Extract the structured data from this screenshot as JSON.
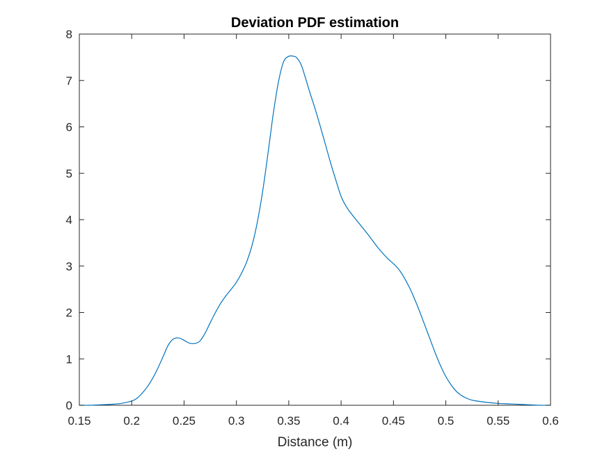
{
  "chart_data": {
    "type": "line",
    "title": "Deviation PDF estimation",
    "xlabel": "Distance (m)",
    "ylabel": "",
    "xlim": [
      0.15,
      0.6
    ],
    "ylim": [
      0,
      8
    ],
    "xticks": [
      "0.15",
      "0.2",
      "0.25",
      "0.3",
      "0.35",
      "0.4",
      "0.45",
      "0.5",
      "0.55",
      "0.6"
    ],
    "yticks": [
      "0",
      "1",
      "2",
      "3",
      "4",
      "5",
      "6",
      "7",
      "8"
    ],
    "grid": false,
    "legend": "none",
    "series": [
      {
        "color": "#0072BD",
        "x": [
          0.15,
          0.16,
          0.17,
          0.18,
          0.19,
          0.2,
          0.205,
          0.21,
          0.215,
          0.22,
          0.225,
          0.23,
          0.235,
          0.24,
          0.245,
          0.25,
          0.255,
          0.26,
          0.265,
          0.27,
          0.275,
          0.28,
          0.285,
          0.29,
          0.295,
          0.3,
          0.305,
          0.31,
          0.315,
          0.32,
          0.325,
          0.33,
          0.335,
          0.34,
          0.345,
          0.35,
          0.355,
          0.358,
          0.362,
          0.366,
          0.37,
          0.375,
          0.38,
          0.385,
          0.39,
          0.395,
          0.4,
          0.405,
          0.41,
          0.415,
          0.42,
          0.425,
          0.43,
          0.435,
          0.44,
          0.445,
          0.45,
          0.455,
          0.46,
          0.465,
          0.47,
          0.475,
          0.48,
          0.485,
          0.49,
          0.495,
          0.5,
          0.505,
          0.51,
          0.515,
          0.52,
          0.525,
          0.53,
          0.54,
          0.55,
          0.56,
          0.57,
          0.58,
          0.59,
          0.6
        ],
        "y": [
          0.0,
          0.0,
          0.01,
          0.02,
          0.04,
          0.09,
          0.15,
          0.26,
          0.4,
          0.58,
          0.8,
          1.05,
          1.3,
          1.43,
          1.45,
          1.4,
          1.34,
          1.33,
          1.38,
          1.55,
          1.78,
          2.0,
          2.2,
          2.36,
          2.5,
          2.65,
          2.85,
          3.1,
          3.45,
          3.95,
          4.6,
          5.4,
          6.25,
          6.95,
          7.4,
          7.52,
          7.52,
          7.48,
          7.33,
          7.05,
          6.75,
          6.4,
          6.02,
          5.62,
          5.22,
          4.85,
          4.5,
          4.28,
          4.12,
          3.98,
          3.84,
          3.7,
          3.55,
          3.4,
          3.27,
          3.15,
          3.05,
          2.93,
          2.76,
          2.55,
          2.3,
          2.02,
          1.72,
          1.42,
          1.12,
          0.85,
          0.62,
          0.44,
          0.3,
          0.21,
          0.15,
          0.11,
          0.09,
          0.06,
          0.04,
          0.03,
          0.02,
          0.01,
          0.0,
          0.0
        ]
      }
    ]
  }
}
